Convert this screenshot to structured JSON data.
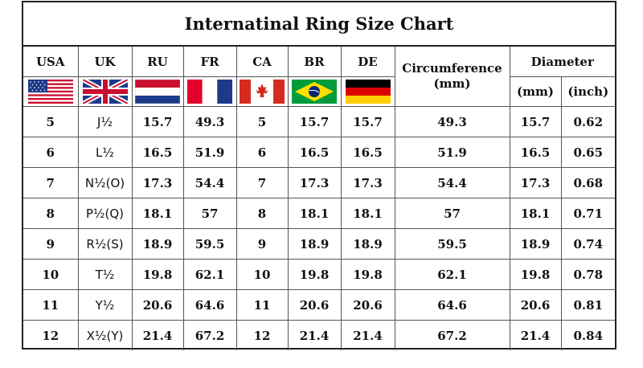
{
  "title": "Internatinal Ring Size Chart",
  "headers": {
    "usa": "USA",
    "uk": "UK",
    "ru": "RU",
    "fr": "FR",
    "ca": "CA",
    "br": "BR",
    "de": "DE",
    "circumference": "Circumference",
    "circumference_unit": "(mm)",
    "diameter": "Diameter",
    "mm": "(mm)",
    "inch": "(inch)"
  },
  "flags": [
    "usa-flag-icon",
    "uk-flag-icon",
    "netherlands-flag-icon",
    "france-flag-icon",
    "canada-flag-icon",
    "brazil-flag-icon",
    "germany-flag-icon"
  ],
  "rows": [
    {
      "usa": "5",
      "uk": "J½",
      "ru": "15.7",
      "fr": "49.3",
      "ca": "5",
      "br": "15.7",
      "de": "15.7",
      "circ": "49.3",
      "mm": "15.7",
      "inch": "0.62"
    },
    {
      "usa": "6",
      "uk": "L½",
      "ru": "16.5",
      "fr": "51.9",
      "ca": "6",
      "br": "16.5",
      "de": "16.5",
      "circ": "51.9",
      "mm": "16.5",
      "inch": "0.65"
    },
    {
      "usa": "7",
      "uk": "N½(O)",
      "ru": "17.3",
      "fr": "54.4",
      "ca": "7",
      "br": "17.3",
      "de": "17.3",
      "circ": "54.4",
      "mm": "17.3",
      "inch": "0.68"
    },
    {
      "usa": "8",
      "uk": "P½(Q)",
      "ru": "18.1",
      "fr": "57",
      "ca": "8",
      "br": "18.1",
      "de": "18.1",
      "circ": "57",
      "mm": "18.1",
      "inch": "0.71"
    },
    {
      "usa": "9",
      "uk": "R½(S)",
      "ru": "18.9",
      "fr": "59.5",
      "ca": "9",
      "br": "18.9",
      "de": "18.9",
      "circ": "59.5",
      "mm": "18.9",
      "inch": "0.74"
    },
    {
      "usa": "10",
      "uk": "T½",
      "ru": "19.8",
      "fr": "62.1",
      "ca": "10",
      "br": "19.8",
      "de": "19.8",
      "circ": "62.1",
      "mm": "19.8",
      "inch": "0.78"
    },
    {
      "usa": "11",
      "uk": "Y½",
      "ru": "20.6",
      "fr": "64.6",
      "ca": "11",
      "br": "20.6",
      "de": "20.6",
      "circ": "64.6",
      "mm": "20.6",
      "inch": "0.81"
    },
    {
      "usa": "12",
      "uk": "X½(Y)",
      "ru": "21.4",
      "fr": "67.2",
      "ca": "12",
      "br": "21.4",
      "de": "21.4",
      "circ": "67.2",
      "mm": "21.4",
      "inch": "0.84"
    }
  ]
}
